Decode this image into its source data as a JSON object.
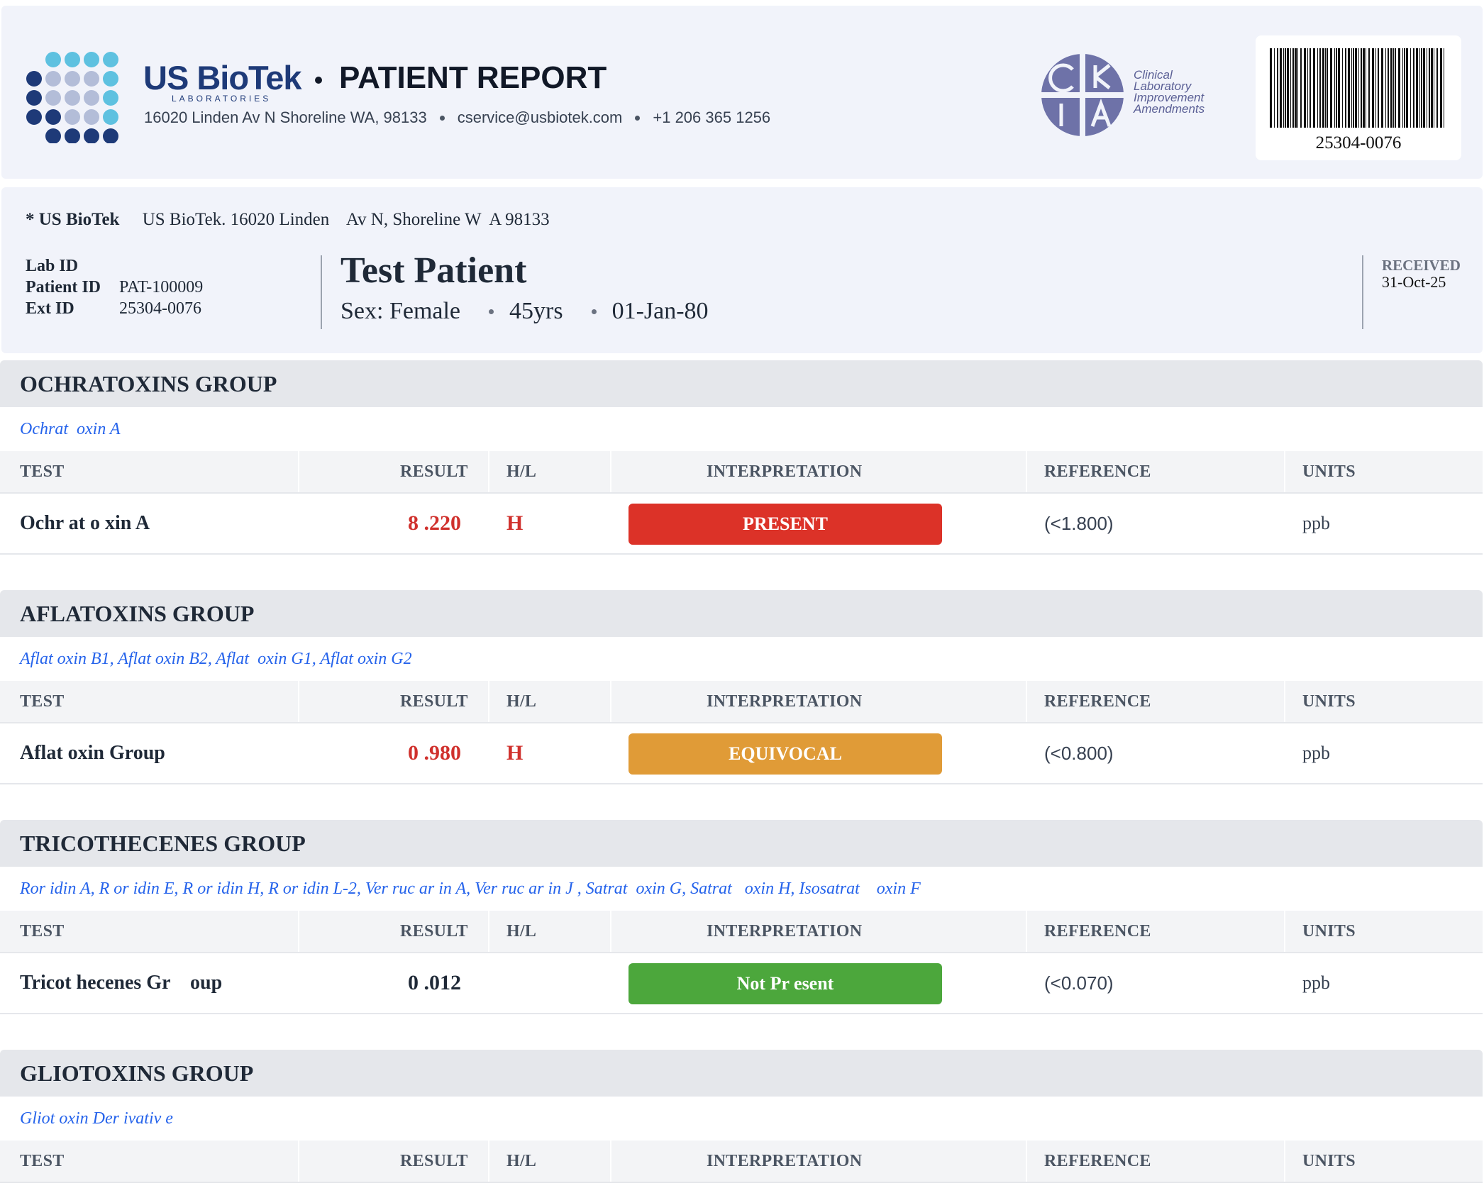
{
  "header": {
    "brand": "US BioTek",
    "brand_sub": "LABORATORIES",
    "report_title": "PATIENT REPORT",
    "address": "16020 Linden Av N Shoreline WA, 98133",
    "email": "cservice@usbiotek.com",
    "phone": "+1 206 365 1256",
    "clia_lines": [
      "Clinical",
      "Laboratory",
      "Improvement",
      "Amendments"
    ],
    "barcode_number": "25304-0076"
  },
  "patient": {
    "lab_name": "* US BioTek",
    "lab_address": "US BioTek. 16020 Linden    Av N, Shoreline W  A 98133",
    "lab_id_label": "Lab ID",
    "lab_id_value": "",
    "patient_id_label": "Patient ID",
    "patient_id_value": "PAT-100009",
    "ext_id_label": "Ext ID",
    "ext_id_value": "25304-0076",
    "name": "Test Patient",
    "sex": "Sex: Female",
    "age": "45yrs",
    "dob": "01-Jan-80",
    "received_label": "RECEIVED",
    "received_value": "31-Oct-25"
  },
  "columns": {
    "test": "TEST",
    "result": "RESULT",
    "hl": "H/L",
    "interpretation": "INTERPRETATION",
    "reference": "REFERENCE",
    "units": "UNITS"
  },
  "colors": {
    "present": "#dc3228",
    "equivocal": "#e09b37",
    "not_present": "#4ca73c",
    "high": "#d0312d",
    "analyte_link": "#2563eb"
  },
  "groups": [
    {
      "title": "OCHRATOXINS GROUP",
      "analytes": "Ochrat  oxin A",
      "rows": [
        {
          "test": "Ochr at o xin A",
          "result": "8 .220",
          "hl": "H",
          "interpretation": "PRESENT",
          "status": "present",
          "reference": "(<1.800)",
          "units": "ppb"
        }
      ]
    },
    {
      "title": "AFLATOXINS GROUP",
      "analytes": "Aflat oxin B1, Aflat oxin B2, Aflat  oxin G1, Aflat oxin G2",
      "rows": [
        {
          "test": "Aflat oxin Group",
          "result": "0 .980",
          "hl": "H",
          "interpretation": "EQUIVOCAL",
          "status": "equivocal",
          "reference": "(<0.800)",
          "units": "ppb"
        }
      ]
    },
    {
      "title": "TRICOTHECENES GROUP",
      "analytes": "Ror idin A, R or idin E, R or idin H, R or idin L-2, Ver ruc ar in A, Ver ruc ar in J , Satrat  oxin G, Satrat   oxin H, Isosatrat    oxin F",
      "rows": [
        {
          "test": "Tricot hecenes Gr    oup",
          "result": "0 .012",
          "hl": "",
          "interpretation": "Not Pr esent",
          "status": "not_present",
          "reference": "(<0.070)",
          "units": "ppb"
        }
      ]
    },
    {
      "title": "GLIOTOXINS GROUP",
      "analytes": "Gliot oxin Der ivativ e",
      "rows": []
    }
  ]
}
